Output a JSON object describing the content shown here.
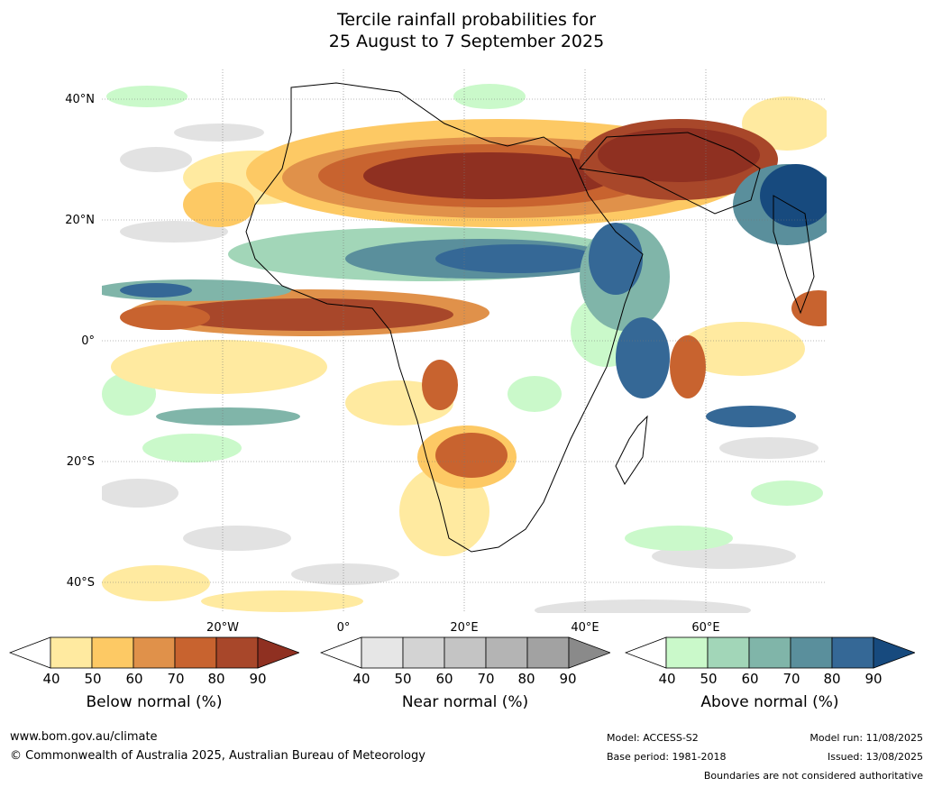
{
  "title_line1": "Tercile rainfall probabilities for",
  "title_line2": "25 August to 7 September 2025",
  "lat_labels": [
    "40°N",
    "20°N",
    "0°",
    "20°S",
    "40°S"
  ],
  "lon_labels": [
    "20°W",
    "0°",
    "20°E",
    "40°E",
    "60°E"
  ],
  "colorbars": [
    {
      "label": "Below normal (%)",
      "ticks": [
        "40",
        "50",
        "60",
        "70",
        "80",
        "90"
      ],
      "colors": [
        "#ffeaa0",
        "#fdc964",
        "#e0914a",
        "#c8632f",
        "#a8472a",
        "#8f3021"
      ],
      "low_color": "#ffffff"
    },
    {
      "label": "Near normal (%)",
      "ticks": [
        "40",
        "50",
        "60",
        "70",
        "80",
        "90"
      ],
      "colors": [
        "#e6e6e6",
        "#d3d3d3",
        "#c4c4c4",
        "#b4b4b4",
        "#a2a2a2",
        "#8a8a8a"
      ],
      "low_color": "#ffffff"
    },
    {
      "label": "Above normal (%)",
      "ticks": [
        "40",
        "50",
        "60",
        "70",
        "80",
        "90"
      ],
      "colors": [
        "#caf9ca",
        "#a2d6b8",
        "#80b5a9",
        "#5a8f9c",
        "#356896",
        "#174a7e"
      ],
      "low_color": "#ffffff"
    }
  ],
  "footer": {
    "url": "www.bom.gov.au/climate",
    "copyright": "© Commonwealth of Australia 2025, Australian Bureau of Meteorology",
    "model": "Model: ACCESS-S2",
    "base_period": "Base period: 1981-2018",
    "model_run": "Model run: 11/08/2025",
    "issued": "Issued: 13/08/2025",
    "disclaimer": "Boundaries are not considered authoritative"
  }
}
